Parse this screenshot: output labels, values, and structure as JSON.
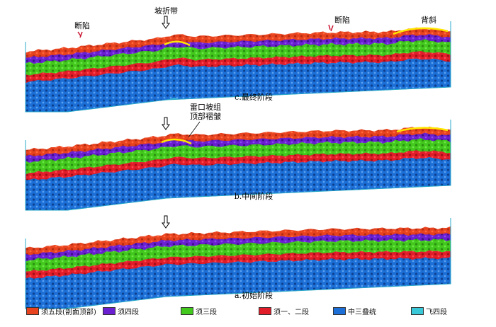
{
  "panels": [
    {
      "id": "c",
      "caption": "c.最终阶段",
      "annotations": [
        {
          "text": "断陷",
          "kind": "fault"
        },
        {
          "text": "坡折带",
          "kind": "arrow"
        },
        {
          "text": "断陷",
          "kind": "fault"
        },
        {
          "text": "背斜",
          "kind": "arch"
        }
      ]
    },
    {
      "id": "b",
      "caption": "b.中间阶段",
      "annotations": [
        {
          "text": "雷口坡组",
          "kind": "note"
        },
        {
          "text": "顶部褶皱",
          "kind": "note"
        }
      ]
    },
    {
      "id": "a",
      "caption": "a.初始阶段",
      "annotations": []
    }
  ],
  "legend": [
    {
      "label": "须五段(剖面顶部)",
      "color": "#e8431f"
    },
    {
      "label": "须四段",
      "color": "#6a1fd0"
    },
    {
      "label": "须三段",
      "color": "#43c81e"
    },
    {
      "label": "须一、二段",
      "color": "#e21d2a"
    },
    {
      "label": "中三叠统",
      "color": "#1c6fd6"
    },
    {
      "label": "飞四段",
      "color": "#38c8d8"
    }
  ]
}
